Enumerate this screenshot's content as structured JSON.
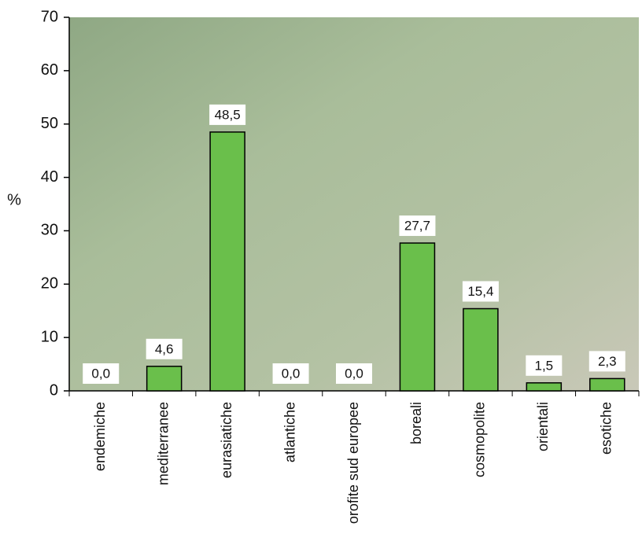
{
  "chart_data": {
    "type": "bar",
    "y_label": "%",
    "categories": [
      "endemiche",
      "mediterranee",
      "eurasiatiche",
      "atlantiche",
      "orofite sud europee",
      "boreali",
      "cosmopolite",
      "orientali",
      "esotiche"
    ],
    "values": [
      0.0,
      4.6,
      48.5,
      0.0,
      0.0,
      27.7,
      15.4,
      1.5,
      2.3
    ],
    "value_labels": [
      "0,0",
      "4,6",
      "48,5",
      "0,0",
      "0,0",
      "27,7",
      "15,4",
      "1,5",
      "2,3"
    ],
    "color": "#6abf4b",
    "ylim": [
      0,
      70
    ],
    "yticks": [
      0,
      10,
      20,
      30,
      40,
      50,
      60,
      70
    ]
  }
}
